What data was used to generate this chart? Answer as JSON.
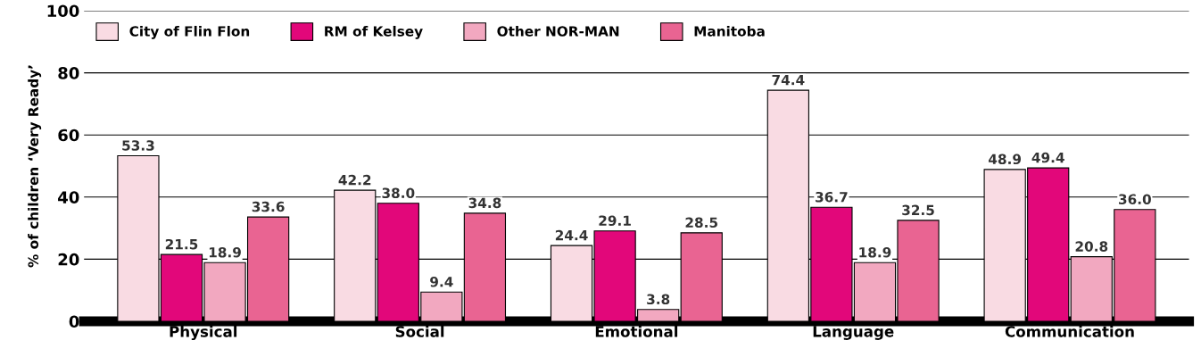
{
  "chart_data": {
    "type": "bar",
    "ylabel": "% of children ‘Very Ready’",
    "categories": [
      "Physical",
      "Social",
      "Emotional",
      "Language",
      "Communication"
    ],
    "series": [
      {
        "name": "City of Flin Flon",
        "color": "#f9dbe3",
        "values": [
          53.3,
          42.2,
          24.4,
          74.4,
          48.9
        ],
        "value_labels": [
          "53.3",
          "42.2",
          "24.4",
          "74.4",
          "48.9"
        ]
      },
      {
        "name": "RM of Kelsey",
        "color": "#e2077a",
        "values": [
          21.5,
          38.0,
          29.1,
          36.7,
          49.4
        ],
        "value_labels": [
          "21.5",
          "38.0",
          "29.1",
          "36.7",
          "49.4"
        ]
      },
      {
        "name": "Other NOR-MAN",
        "color": "#f2a8c0",
        "values": [
          18.9,
          9.4,
          3.8,
          18.9,
          20.8
        ],
        "value_labels": [
          "18.9",
          "9.4",
          "3.8",
          "18.9",
          "20.8"
        ]
      },
      {
        "name": "Manitoba",
        "color": "#e96492",
        "values": [
          33.6,
          34.8,
          28.5,
          32.5,
          36.0
        ],
        "value_labels": [
          "33.6",
          "34.8",
          "28.5",
          "32.5",
          "36.0"
        ]
      }
    ],
    "ylim": [
      0,
      100
    ],
    "yticks": [
      0,
      20,
      40,
      60,
      80,
      100
    ],
    "grid": "y",
    "legend": "top left"
  }
}
